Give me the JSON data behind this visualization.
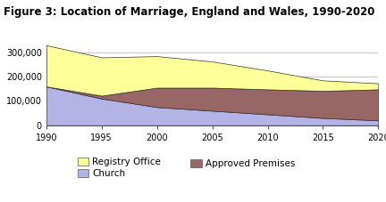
{
  "title": "Figure 3: Location of Marriage, England and Wales, 1990-2020",
  "years": [
    1990,
    1995,
    2000,
    2005,
    2010,
    2015,
    2020
  ],
  "church": [
    160000,
    110000,
    75000,
    60000,
    45000,
    30000,
    20000
  ],
  "approved_premises": [
    0,
    12000,
    80000,
    95000,
    103000,
    112000,
    128000
  ],
  "registry_office": [
    170000,
    158000,
    130000,
    108000,
    78000,
    43000,
    25000
  ],
  "colors": {
    "church": "#b3b3e6",
    "approved_premises": "#996666",
    "registry_office": "#ffff99"
  },
  "ylim": [
    0,
    350000
  ],
  "yticks": [
    0,
    100000,
    200000,
    300000
  ],
  "xlim": [
    1990,
    2020
  ],
  "xticks": [
    1990,
    1995,
    2000,
    2005,
    2010,
    2015,
    2020
  ],
  "background_color": "#ffffff",
  "title_fontsize": 8.5,
  "tick_fontsize": 7,
  "legend_fontsize": 7.5
}
